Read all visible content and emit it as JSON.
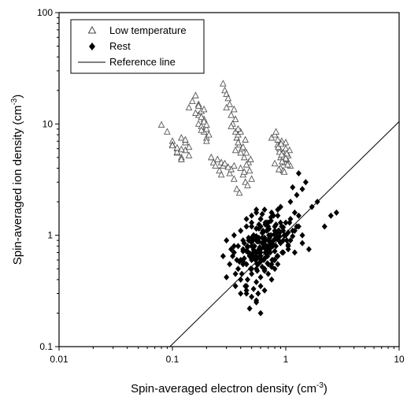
{
  "chart_data": {
    "type": "scatter",
    "title": "",
    "xlabel": "Spin-averaged electron density (cm",
    "ylabel": "Spin-averaged ion density (cm",
    "axis_unit_exponent": "-3",
    "axis_unit_close": ")",
    "xscale": "log",
    "yscale": "log",
    "xlim": [
      0.01,
      10
    ],
    "ylim": [
      0.1,
      100
    ],
    "xticks": [
      "0.01",
      "0.1",
      "1",
      "10"
    ],
    "yticks": [
      "0.1",
      "1",
      "10",
      "100"
    ],
    "grid": false,
    "legend_position": "top-left",
    "series": [
      {
        "name": "Low temperature",
        "marker": "open-triangle",
        "color": "#555555",
        "x": [
          0.08,
          0.09,
          0.1,
          0.1,
          0.11,
          0.11,
          0.12,
          0.12,
          0.13,
          0.13,
          0.14,
          0.14,
          0.12,
          0.11,
          0.1,
          0.13,
          0.12,
          0.11,
          0.14,
          0.15,
          0.16,
          0.17,
          0.17,
          0.18,
          0.18,
          0.19,
          0.19,
          0.2,
          0.2,
          0.21,
          0.16,
          0.17,
          0.18,
          0.19,
          0.2,
          0.18,
          0.17,
          0.19,
          0.2,
          0.22,
          0.23,
          0.24,
          0.25,
          0.26,
          0.27,
          0.28,
          0.29,
          0.3,
          0.31,
          0.32,
          0.33,
          0.34,
          0.35,
          0.36,
          0.37,
          0.38,
          0.39,
          0.4,
          0.42,
          0.44,
          0.3,
          0.33,
          0.36,
          0.38,
          0.4,
          0.28,
          0.32,
          0.35,
          0.37,
          0.39,
          0.41,
          0.43,
          0.45,
          0.47,
          0.48,
          0.5,
          0.46,
          0.44,
          0.42,
          0.49,
          0.45,
          0.43,
          0.4,
          0.38,
          0.36,
          0.35,
          0.33,
          0.31,
          0.29,
          0.27,
          0.75,
          0.8,
          0.82,
          0.85,
          0.88,
          0.9,
          0.92,
          0.95,
          0.98,
          1.0,
          1.02,
          1.05,
          1.08,
          1.1,
          0.85,
          0.9,
          0.95,
          1.0,
          0.88,
          0.93,
          0.97,
          1.02,
          0.8,
          0.86,
          0.91,
          0.96,
          1.0,
          1.04,
          0.87,
          0.92
        ],
        "y": [
          9.8,
          8.5,
          7.0,
          6.5,
          5.5,
          6.0,
          5.0,
          7.5,
          6.8,
          5.8,
          5.2,
          6.2,
          4.8,
          5.6,
          6.4,
          7.2,
          5.9,
          6.1,
          14.0,
          16.0,
          18.0,
          12.0,
          10.0,
          13.0,
          9.5,
          11.0,
          8.5,
          9.0,
          7.5,
          8.0,
          12.5,
          15.0,
          11.5,
          10.5,
          9.8,
          8.8,
          14.5,
          13.5,
          7.0,
          5.0,
          4.5,
          4.2,
          4.8,
          3.8,
          4.5,
          23.0,
          20.0,
          18.5,
          17.0,
          15.0,
          12.0,
          10.0,
          13.5,
          11.0,
          7.5,
          8.0,
          6.5,
          4.0,
          3.5,
          3.0,
          14.0,
          9.5,
          8.5,
          6.8,
          5.5,
          4.2,
          3.6,
          3.2,
          2.6,
          2.4,
          6.0,
          5.0,
          5.5,
          4.5,
          3.8,
          3.2,
          2.8,
          7.2,
          6.2,
          4.8,
          4.3,
          3.7,
          8.5,
          9.0,
          5.8,
          4.2,
          3.9,
          4.1,
          4.4,
          3.5,
          7.5,
          8.0,
          8.5,
          6.5,
          6.0,
          5.0,
          7.0,
          5.5,
          4.5,
          6.0,
          4.8,
          5.2,
          5.8,
          4.2,
          7.2,
          4.0,
          3.8,
          6.8,
          5.6,
          4.6,
          3.7,
          5.4,
          4.4,
          6.2,
          6.6,
          5.1,
          4.9,
          4.3,
          3.9,
          5.3
        ]
      },
      {
        "name": "Rest",
        "marker": "filled-diamond",
        "color": "#000000",
        "x": [
          0.3,
          0.32,
          0.34,
          0.35,
          0.36,
          0.38,
          0.4,
          0.42,
          0.44,
          0.45,
          0.46,
          0.48,
          0.5,
          0.52,
          0.54,
          0.55,
          0.56,
          0.58,
          0.6,
          0.62,
          0.64,
          0.65,
          0.66,
          0.68,
          0.7,
          0.72,
          0.74,
          0.75,
          0.76,
          0.78,
          0.8,
          0.82,
          0.85,
          0.88,
          0.9,
          0.95,
          1.0,
          1.05,
          1.1,
          1.2,
          1.3,
          1.4,
          0.33,
          0.37,
          0.41,
          0.43,
          0.47,
          0.49,
          0.51,
          0.53,
          0.57,
          0.59,
          0.61,
          0.63,
          0.67,
          0.69,
          0.71,
          0.73,
          0.77,
          0.79,
          0.83,
          0.87,
          0.92,
          0.97,
          1.02,
          1.08,
          1.15,
          0.4,
          0.45,
          0.5,
          0.55,
          0.6,
          0.65,
          0.7,
          0.75,
          0.8,
          0.5,
          0.55,
          0.6,
          0.45,
          0.5,
          0.55,
          0.6,
          0.65,
          0.42,
          0.48,
          0.52,
          0.58,
          0.62,
          0.68,
          0.72,
          0.35,
          0.38,
          0.4,
          0.42,
          0.45,
          0.47,
          0.5,
          0.52,
          0.55,
          0.58,
          0.6,
          0.63,
          0.66,
          0.7,
          0.74,
          0.78,
          0.82,
          0.86,
          0.9,
          0.28,
          0.3,
          0.33,
          0.36,
          0.39,
          0.43,
          0.46,
          0.49,
          0.53,
          0.56,
          0.59,
          0.62,
          0.66,
          0.69,
          0.73,
          0.76,
          0.8,
          0.84,
          0.88,
          0.93,
          0.98,
          1.05,
          0.5,
          0.55,
          0.6,
          0.65,
          0.7,
          0.75,
          0.8,
          0.85,
          0.9,
          0.95,
          1.0,
          1.1,
          1.2,
          1.3,
          0.45,
          0.5,
          0.55,
          0.62,
          0.68,
          0.74,
          0.45,
          0.5,
          0.55,
          0.6,
          0.65,
          0.7,
          0.75,
          0.8,
          0.85,
          0.58,
          0.62,
          0.66,
          0.7,
          0.74,
          0.64,
          0.68,
          0.72,
          0.56,
          0.6,
          0.52,
          0.42,
          0.48,
          0.52,
          0.56,
          0.6,
          0.64,
          0.68,
          0.72,
          0.76,
          0.8,
          0.46,
          0.5,
          0.54,
          0.58,
          0.47,
          0.55,
          0.63,
          0.71,
          0.79,
          0.87,
          0.95,
          1.05,
          1.15,
          1.25,
          0.5,
          0.58,
          0.66,
          0.74,
          0.82,
          0.35,
          0.42,
          0.5,
          0.58,
          0.66,
          0.74,
          0.4,
          0.45,
          0.55,
          0.65,
          0.75,
          0.85,
          0.95,
          1.05,
          1.2,
          1.4,
          1.6,
          1.1,
          1.25,
          1.4,
          1.5,
          1.7,
          1.9,
          2.2,
          2.5,
          2.8,
          1.3,
          1.15,
          0.85,
          0.48,
          0.55,
          0.6,
          0.52,
          0.57
        ],
        "y": [
          0.9,
          0.55,
          0.65,
          0.7,
          0.45,
          0.5,
          0.6,
          0.75,
          0.35,
          0.55,
          0.8,
          0.65,
          0.5,
          0.7,
          0.6,
          0.9,
          0.55,
          0.75,
          0.65,
          0.85,
          0.6,
          0.95,
          0.7,
          0.8,
          0.9,
          0.75,
          1.0,
          0.85,
          0.6,
          0.9,
          1.1,
          0.8,
          0.95,
          1.05,
          0.85,
          0.9,
          1.0,
          0.8,
          0.9,
          1.1,
          1.2,
          1.0,
          0.75,
          0.6,
          0.45,
          0.85,
          0.7,
          0.5,
          0.65,
          0.8,
          0.55,
          0.7,
          0.6,
          0.85,
          0.75,
          0.65,
          1.0,
          0.7,
          0.8,
          0.6,
          1.05,
          0.9,
          1.2,
          1.0,
          0.9,
          1.3,
          1.1,
          0.4,
          0.35,
          0.45,
          0.5,
          0.42,
          0.48,
          0.55,
          0.52,
          0.6,
          0.6,
          0.7,
          0.75,
          0.72,
          0.8,
          0.65,
          0.58,
          0.62,
          0.55,
          0.68,
          0.78,
          0.88,
          0.95,
          0.72,
          0.82,
          1.0,
          0.8,
          1.1,
          0.9,
          1.2,
          0.95,
          1.3,
          1.0,
          1.15,
          1.25,
          1.4,
          1.1,
          1.3,
          1.2,
          1.35,
          1.5,
          1.25,
          1.1,
          1.3,
          0.65,
          0.42,
          0.75,
          0.35,
          0.58,
          0.62,
          0.4,
          0.68,
          0.72,
          0.48,
          0.78,
          0.52,
          0.82,
          0.56,
          0.88,
          0.6,
          0.92,
          0.65,
          0.98,
          0.7,
          1.0,
          0.75,
          1.5,
          1.6,
          1.4,
          1.7,
          1.3,
          1.6,
          1.2,
          1.5,
          1.8,
          1.1,
          1.3,
          1.4,
          1.6,
          1.5,
          1.4,
          1.2,
          1.7,
          1.55,
          1.3,
          1.45,
          0.3,
          0.28,
          0.25,
          0.35,
          0.32,
          0.45,
          0.4,
          0.5,
          0.55,
          0.95,
          1.05,
          0.9,
          1.15,
          1.0,
          0.85,
          1.1,
          0.95,
          0.88,
          1.2,
          0.92,
          0.58,
          0.66,
          0.74,
          0.62,
          0.7,
          0.78,
          0.68,
          0.76,
          0.84,
          0.72,
          0.78,
          0.86,
          0.64,
          0.72,
          0.9,
          0.98,
          1.06,
          1.14,
          1.02,
          1.1,
          1.18,
          1.06,
          0.98,
          1.2,
          0.62,
          0.7,
          0.78,
          0.86,
          0.94,
          0.8,
          0.72,
          0.95,
          1.15,
          1.25,
          1.35,
          0.3,
          0.32,
          0.38,
          0.5,
          0.55,
          0.65,
          0.7,
          0.82,
          0.7,
          0.85,
          0.75,
          2.0,
          2.3,
          2.6,
          3.0,
          1.8,
          2.0,
          1.2,
          1.5,
          1.6,
          3.6,
          2.7,
          1.7,
          0.22,
          0.26,
          0.2,
          0.33,
          0.3
        ]
      },
      {
        "name": "Reference line",
        "type": "line",
        "color": "#000000",
        "x": [
          0.095,
          10
        ],
        "y": [
          0.1,
          10.5
        ]
      }
    ]
  }
}
